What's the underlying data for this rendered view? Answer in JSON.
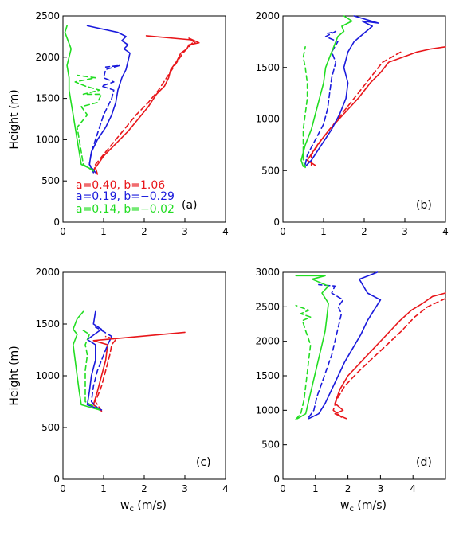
{
  "colors": {
    "red": "#e8161a",
    "blue": "#1a1adc",
    "green": "#22dd22"
  },
  "chart_data": [
    {
      "type": "line",
      "panel": "(a)",
      "xlabel": "",
      "ylabel": "Height (m)",
      "xlim": [
        0,
        4
      ],
      "ylim": [
        0,
        2500
      ],
      "xticks": [
        0,
        1,
        2,
        3,
        4
      ],
      "yticks": [
        0,
        500,
        1000,
        1500,
        2000,
        2500
      ],
      "annotations": [
        {
          "text": "a=0.40, b=1.06",
          "color": "red"
        },
        {
          "text": "a=0.19, b=−0.29",
          "color": "blue"
        },
        {
          "text": "a=0.14, b=−0.02",
          "color": "green"
        }
      ],
      "series": [
        {
          "color": "red",
          "dash": false,
          "x": [
            0.85,
            0.8,
            1.0,
            1.3,
            1.6,
            1.85,
            2.1,
            2.3,
            2.5,
            2.6,
            2.65,
            2.8,
            2.9,
            3.05,
            3.1,
            3.35,
            3.1,
            3.25,
            3.15,
            2.05
          ],
          "y": [
            580,
            660,
            800,
            950,
            1100,
            1250,
            1400,
            1550,
            1650,
            1750,
            1850,
            1950,
            2050,
            2100,
            2150,
            2175,
            2230,
            2175,
            2210,
            2260
          ]
        },
        {
          "color": "red",
          "dash": true,
          "x": [
            0.75,
            0.8,
            1.05,
            1.3,
            1.55,
            1.8,
            2.1,
            2.35,
            2.55,
            2.75,
            2.95,
            3.2
          ],
          "y": [
            600,
            700,
            850,
            1000,
            1150,
            1300,
            1450,
            1600,
            1750,
            1900,
            2050,
            2180
          ]
        },
        {
          "color": "blue",
          "dash": false,
          "x": [
            0.75,
            0.65,
            0.7,
            0.85,
            1.05,
            1.2,
            1.3,
            1.35,
            1.45,
            1.55,
            1.6,
            1.65,
            1.5,
            1.6,
            1.45,
            1.55,
            1.35,
            0.6
          ],
          "y": [
            600,
            700,
            850,
            1000,
            1150,
            1300,
            1450,
            1600,
            1750,
            1850,
            1950,
            2050,
            2100,
            2150,
            2200,
            2250,
            2300,
            2380
          ]
        },
        {
          "color": "blue",
          "dash": true,
          "x": [
            0.8,
            0.65,
            0.7,
            0.8,
            0.9,
            1.0,
            1.1,
            1.2,
            1.25,
            0.95,
            1.25,
            1.0,
            1.05,
            1.4,
            1.05
          ],
          "y": [
            600,
            700,
            850,
            1000,
            1150,
            1300,
            1400,
            1500,
            1600,
            1650,
            1700,
            1750,
            1850,
            1900,
            1880
          ]
        },
        {
          "color": "green",
          "dash": false,
          "x": [
            0.75,
            0.45,
            0.4,
            0.35,
            0.3,
            0.25,
            0.2,
            0.15,
            0.15,
            0.1,
            0.2,
            0.05,
            0.1
          ],
          "y": [
            630,
            700,
            850,
            1000,
            1150,
            1300,
            1450,
            1600,
            1750,
            1900,
            2100,
            2300,
            2380
          ]
        },
        {
          "color": "green",
          "dash": true,
          "x": [
            0.75,
            0.5,
            0.45,
            0.4,
            0.35,
            0.6,
            0.45,
            0.85,
            0.95,
            0.5,
            0.9,
            0.55,
            0.3,
            0.8,
            0.35
          ],
          "y": [
            620,
            700,
            850,
            1000,
            1150,
            1300,
            1400,
            1450,
            1550,
            1550,
            1600,
            1650,
            1700,
            1750,
            1780
          ]
        }
      ]
    },
    {
      "type": "line",
      "panel": "(b)",
      "xlabel": "",
      "ylabel": "",
      "xlim": [
        0,
        4
      ],
      "ylim": [
        0,
        2000
      ],
      "xticks": [
        0,
        1,
        2,
        3,
        4
      ],
      "yticks": [
        0,
        500,
        1000,
        1500,
        2000
      ],
      "series": [
        {
          "color": "red",
          "dash": false,
          "x": [
            0.8,
            0.6,
            0.85,
            1.15,
            1.5,
            1.85,
            2.15,
            2.4,
            2.6,
            2.95,
            3.3,
            3.65,
            4.0
          ],
          "y": [
            550,
            600,
            750,
            900,
            1050,
            1200,
            1350,
            1450,
            1550,
            1600,
            1650,
            1680,
            1700
          ]
        },
        {
          "color": "red",
          "dash": true,
          "x": [
            0.7,
            0.7,
            0.95,
            1.25,
            1.55,
            1.85,
            2.15,
            2.45,
            2.9
          ],
          "y": [
            550,
            650,
            800,
            950,
            1100,
            1250,
            1400,
            1550,
            1650
          ]
        },
        {
          "color": "blue",
          "dash": false,
          "x": [
            0.55,
            0.7,
            0.95,
            1.2,
            1.4,
            1.55,
            1.6,
            1.5,
            1.6,
            1.75,
            1.9,
            2.05,
            2.2,
            1.95,
            2.35,
            1.75
          ],
          "y": [
            540,
            600,
            750,
            900,
            1050,
            1200,
            1350,
            1500,
            1650,
            1750,
            1800,
            1850,
            1900,
            1950,
            1930,
            2000
          ]
        },
        {
          "color": "blue",
          "dash": true,
          "x": [
            0.55,
            0.6,
            0.8,
            1.0,
            1.1,
            1.15,
            1.2,
            1.3,
            1.2,
            1.35,
            1.05,
            1.3,
            1.1
          ],
          "y": [
            560,
            650,
            800,
            950,
            1100,
            1250,
            1400,
            1550,
            1650,
            1750,
            1800,
            1850,
            1830
          ]
        },
        {
          "color": "green",
          "dash": false,
          "x": [
            0.5,
            0.45,
            0.55,
            0.7,
            0.8,
            0.9,
            1.0,
            1.05,
            1.15,
            1.25,
            1.35,
            1.5,
            1.45,
            1.7,
            1.5
          ],
          "y": [
            540,
            600,
            750,
            900,
            1050,
            1200,
            1350,
            1500,
            1600,
            1700,
            1800,
            1850,
            1900,
            1950,
            2000
          ]
        },
        {
          "color": "green",
          "dash": true,
          "x": [
            0.55,
            0.5,
            0.5,
            0.5,
            0.55,
            0.6,
            0.6,
            0.55,
            0.5,
            0.55
          ],
          "y": [
            530,
            600,
            750,
            900,
            1050,
            1200,
            1350,
            1500,
            1600,
            1700
          ]
        }
      ]
    },
    {
      "type": "line",
      "panel": "(c)",
      "xlabel": "w_c (m/s)",
      "ylabel": "Height (m)",
      "xlim": [
        0,
        4
      ],
      "ylim": [
        0,
        2000
      ],
      "xticks": [
        0,
        1,
        2,
        3,
        4
      ],
      "yticks": [
        0,
        500,
        1000,
        1500,
        2000
      ],
      "series": [
        {
          "color": "red",
          "dash": false,
          "x": [
            0.95,
            0.75,
            0.85,
            0.95,
            1.05,
            1.1,
            0.75,
            3.0
          ],
          "y": [
            660,
            720,
            850,
            1000,
            1150,
            1300,
            1340,
            1420
          ]
        },
        {
          "color": "red",
          "dash": true,
          "x": [
            0.95,
            0.8,
            0.95,
            1.05,
            1.15,
            1.2,
            1.3,
            1.05
          ],
          "y": [
            660,
            750,
            900,
            1050,
            1200,
            1300,
            1350,
            1380
          ]
        },
        {
          "color": "blue",
          "dash": false,
          "x": [
            0.95,
            0.6,
            0.65,
            0.7,
            0.8,
            0.8,
            0.6,
            0.95,
            0.75,
            0.8
          ],
          "y": [
            670,
            720,
            850,
            1000,
            1150,
            1300,
            1350,
            1450,
            1500,
            1620
          ]
        },
        {
          "color": "blue",
          "dash": true,
          "x": [
            0.9,
            0.7,
            0.75,
            0.85,
            1.0,
            1.1,
            1.2,
            0.9,
            0.8
          ],
          "y": [
            670,
            750,
            900,
            1050,
            1200,
            1300,
            1380,
            1450,
            1470
          ]
        },
        {
          "color": "green",
          "dash": false,
          "x": [
            0.9,
            0.45,
            0.4,
            0.35,
            0.3,
            0.25,
            0.35,
            0.25,
            0.35,
            0.5
          ],
          "y": [
            670,
            720,
            850,
            1000,
            1150,
            1300,
            1400,
            1450,
            1550,
            1620
          ]
        },
        {
          "color": "green",
          "dash": true,
          "x": [
            0.9,
            0.55,
            0.55,
            0.55,
            0.6,
            0.55,
            0.65,
            0.45
          ],
          "y": [
            670,
            750,
            900,
            1050,
            1200,
            1300,
            1400,
            1450
          ]
        }
      ]
    },
    {
      "type": "line",
      "panel": "(d)",
      "xlabel": "w_c (m/s)",
      "ylabel": "",
      "xlim": [
        0,
        5
      ],
      "ylim": [
        0,
        3000
      ],
      "xticks": [
        0,
        1,
        2,
        3,
        4
      ],
      "yticks": [
        0,
        500,
        1000,
        1500,
        2000,
        2500,
        3000
      ],
      "series": [
        {
          "color": "red",
          "dash": false,
          "x": [
            1.95,
            1.6,
            1.85,
            1.6,
            1.75,
            2.0,
            2.4,
            2.8,
            3.2,
            3.6,
            3.95,
            4.3,
            4.6,
            5.0
          ],
          "y": [
            880,
            950,
            1000,
            1100,
            1300,
            1500,
            1700,
            1900,
            2100,
            2300,
            2450,
            2550,
            2650,
            2700
          ]
        },
        {
          "color": "red",
          "dash": true,
          "x": [
            1.8,
            1.55,
            1.65,
            1.9,
            2.3,
            2.75,
            3.2,
            3.65,
            4.05,
            4.45,
            5.0
          ],
          "y": [
            900,
            1000,
            1150,
            1350,
            1550,
            1750,
            1950,
            2150,
            2350,
            2500,
            2620
          ]
        },
        {
          "color": "blue",
          "dash": false,
          "x": [
            0.8,
            1.1,
            1.3,
            1.5,
            1.7,
            1.9,
            2.15,
            2.4,
            2.6,
            2.8,
            3.0,
            2.6,
            2.35,
            2.9
          ],
          "y": [
            880,
            950,
            1100,
            1300,
            1500,
            1700,
            1900,
            2100,
            2300,
            2450,
            2600,
            2700,
            2900,
            3000
          ]
        },
        {
          "color": "blue",
          "dash": true,
          "x": [
            0.8,
            0.95,
            1.05,
            1.2,
            1.35,
            1.5,
            1.6,
            1.7,
            1.8,
            1.7,
            1.85,
            1.5,
            1.6,
            1.1
          ],
          "y": [
            900,
            1000,
            1200,
            1400,
            1600,
            1800,
            2000,
            2200,
            2400,
            2500,
            2600,
            2700,
            2800,
            2820
          ]
        },
        {
          "color": "green",
          "dash": false,
          "x": [
            0.45,
            0.7,
            0.8,
            0.9,
            1.0,
            1.1,
            1.2,
            1.3,
            1.35,
            1.4,
            1.2,
            1.4,
            0.9,
            1.3,
            0.4
          ],
          "y": [
            880,
            950,
            1150,
            1350,
            1550,
            1750,
            1950,
            2150,
            2350,
            2550,
            2700,
            2800,
            2900,
            2950,
            2950
          ]
        },
        {
          "color": "green",
          "dash": true,
          "x": [
            0.4,
            0.55,
            0.65,
            0.7,
            0.75,
            0.8,
            0.85,
            0.7,
            0.6,
            0.85,
            0.55,
            0.8,
            0.4
          ],
          "y": [
            870,
            950,
            1150,
            1350,
            1550,
            1750,
            1950,
            2150,
            2300,
            2350,
            2400,
            2450,
            2520
          ]
        }
      ]
    }
  ]
}
